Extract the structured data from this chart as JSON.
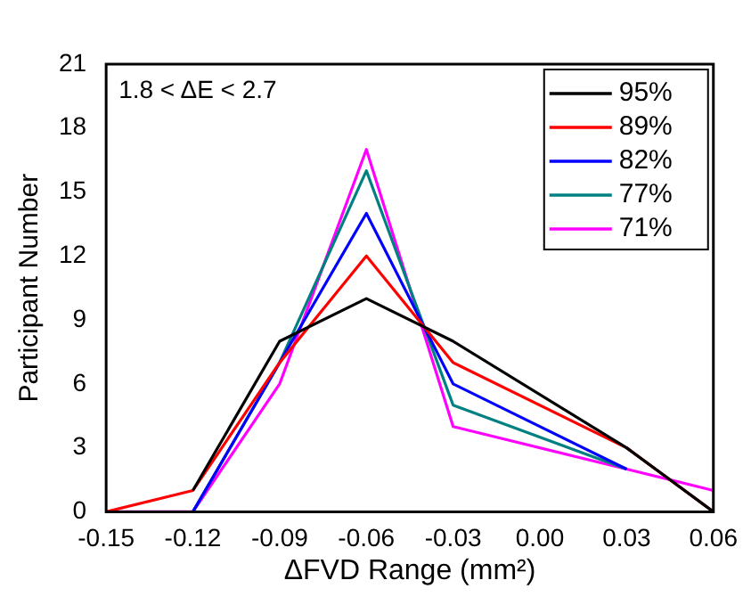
{
  "chart_data": {
    "type": "line",
    "xlabel": "ΔFVD Range (mm²)",
    "ylabel": "Participant Number",
    "x": [
      -0.15,
      -0.12,
      -0.09,
      -0.06,
      -0.03,
      0.03,
      0.06
    ],
    "series": [
      {
        "name": "95%",
        "color": "#000000",
        "values": [
          null,
          1,
          8,
          10,
          8,
          3,
          0
        ]
      },
      {
        "name": "89%",
        "color": "#ff0000",
        "values": [
          0,
          1,
          7,
          12,
          7,
          3,
          0
        ]
      },
      {
        "name": "82%",
        "color": "#0000ff",
        "values": [
          null,
          0,
          7,
          14,
          6,
          2,
          null
        ]
      },
      {
        "name": "77%",
        "color": "#008080",
        "values": [
          null,
          0,
          7,
          16,
          5,
          2,
          null
        ]
      },
      {
        "name": "71%",
        "color": "#ff00ff",
        "values": [
          0,
          0,
          6,
          17,
          4,
          2,
          1
        ]
      }
    ],
    "xlim": [
      -0.15,
      0.06
    ],
    "xticks": [
      -0.15,
      -0.12,
      -0.09,
      -0.06,
      -0.03,
      {
        "value": 0,
        "label": "0.00"
      },
      0.03,
      0.06
    ],
    "ylim": [
      0,
      21
    ],
    "yticks": [
      0,
      3,
      6,
      9,
      12,
      15,
      18,
      21
    ],
    "annotations": [
      "1.8 < ΔE < 2.7"
    ],
    "legend": "top right",
    "grid": false,
    "marker": "none",
    "line_style": "solid"
  }
}
